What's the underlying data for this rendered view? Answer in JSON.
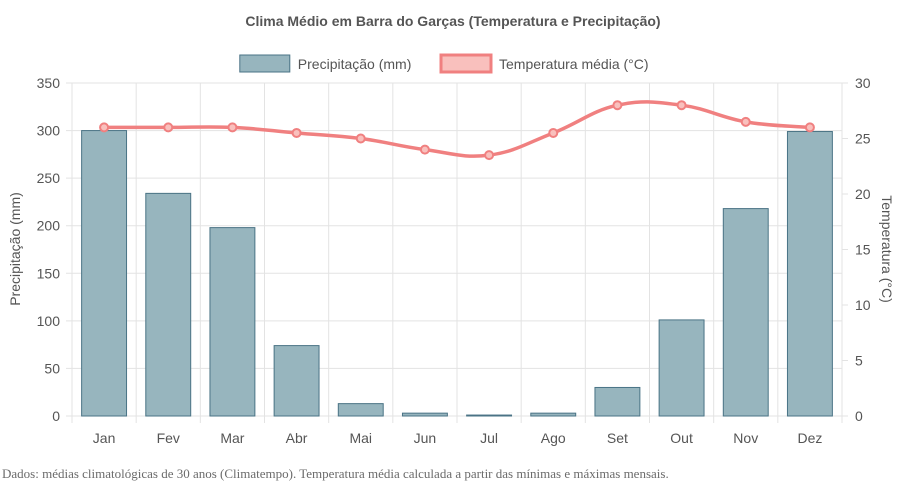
{
  "chart_data": {
    "type": "bar",
    "title": "Clima Médio em Barra do Garças (Temperatura e Precipitação)",
    "categories": [
      "Jan",
      "Fev",
      "Mar",
      "Abr",
      "Mai",
      "Jun",
      "Jul",
      "Ago",
      "Set",
      "Out",
      "Nov",
      "Dez"
    ],
    "series": [
      {
        "name": "Precipitação (mm)",
        "type": "bar",
        "axis": "left",
        "color": "#97b5be",
        "border_color": "#4a7385",
        "values": [
          300,
          234,
          198,
          74,
          13,
          3,
          1,
          3,
          30,
          101,
          218,
          299
        ]
      },
      {
        "name": "Temperatura média (°C)",
        "type": "line",
        "axis": "right",
        "color": "#f08080",
        "fill_color": "#f9c0bd",
        "values": [
          26,
          26,
          26,
          25.5,
          25,
          24,
          23.5,
          25.5,
          28,
          28,
          26.5,
          26
        ]
      }
    ],
    "y_left": {
      "label": "Precipitação (mm)",
      "min": 0,
      "max": 350,
      "ticks": [
        0,
        50,
        100,
        150,
        200,
        250,
        300,
        350
      ]
    },
    "y_right": {
      "label": "Temperatura (°C)",
      "min": 0,
      "max": 30,
      "ticks": [
        0,
        5,
        10,
        15,
        20,
        25,
        30
      ]
    },
    "grid": true,
    "legend_position": "top-center"
  },
  "footer": {
    "note": "Dados: médias climatológicas de 30 anos (Climatempo). Temperatura média calculada a partir das mínimas e máximas mensais."
  }
}
